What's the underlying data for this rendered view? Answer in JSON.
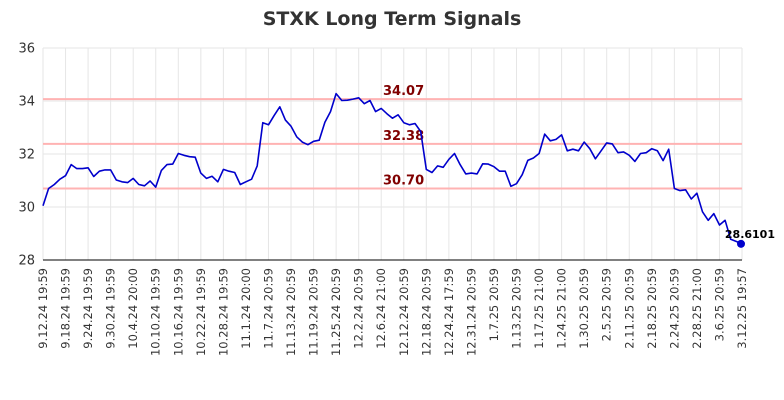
{
  "chart_data": {
    "type": "line",
    "title": "STXK Long Term Signals",
    "xlabel": "",
    "ylabel": "",
    "ylim": [
      28,
      36
    ],
    "yticks": [
      28,
      30,
      32,
      34,
      36
    ],
    "grid": true,
    "x_tick_labels": [
      "9.12.24 19:59",
      "9.18.24 19:59",
      "9.24.24 19:59",
      "9.30.24 19:59",
      "10.4.24 20:00",
      "10.10.24 19:59",
      "10.16.24 19:59",
      "10.22.24 19:59",
      "10.28.24 19:59",
      "11.1.24 20:00",
      "11.7.24 20:59",
      "11.13.24 20:59",
      "11.19.24 20:59",
      "11.25.24 20:59",
      "12.2.24 20:59",
      "12.6.24 21:00",
      "12.12.24 20:59",
      "12.18.24 20:59",
      "12.24.24 17:59",
      "12.31.24 20:59",
      "1.7.25 20:59",
      "1.13.25 20:59",
      "1.17.25 21:00",
      "1.24.25 21:00",
      "1.30.25 20:59",
      "2.5.25 20:59",
      "2.11.25 20:59",
      "2.18.25 20:59",
      "2.24.25 20:59",
      "2.28.25 21:00",
      "3.6.25 20:59",
      "3.12.25 19:57"
    ],
    "series": [
      {
        "color": "#0000cc",
        "values": [
          30.05,
          30.7,
          30.85,
          31.05,
          31.18,
          31.6,
          31.45,
          31.45,
          31.48,
          31.15,
          31.35,
          31.4,
          31.4,
          31.02,
          30.95,
          30.92,
          31.08,
          30.85,
          30.8,
          30.98,
          30.75,
          31.38,
          31.6,
          31.62,
          32.02,
          31.95,
          31.9,
          31.88,
          31.28,
          31.08,
          31.16,
          30.95,
          31.42,
          31.35,
          31.3,
          30.85,
          30.95,
          31.05,
          31.55,
          33.18,
          33.1,
          33.45,
          33.78,
          33.28,
          33.05,
          32.65,
          32.45,
          32.35,
          32.48,
          32.52,
          33.2,
          33.6,
          34.28,
          34.02,
          34.03,
          34.07,
          34.12,
          33.9,
          34.02,
          33.6,
          33.72,
          33.52,
          33.35,
          33.48,
          33.18,
          33.1,
          33.15,
          32.85,
          31.42,
          31.3,
          31.55,
          31.5,
          31.8,
          32.02,
          31.6,
          31.25,
          31.28,
          31.25,
          31.63,
          31.62,
          31.52,
          31.35,
          31.35,
          30.78,
          30.88,
          31.22,
          31.76,
          31.85,
          32.02,
          32.75,
          32.5,
          32.55,
          32.72,
          32.12,
          32.18,
          32.12,
          32.45,
          32.2,
          31.82,
          32.12,
          32.42,
          32.38,
          32.05,
          32.08,
          31.95,
          31.72,
          32.02,
          32.05,
          32.2,
          32.12,
          31.75,
          32.18,
          30.7,
          30.62,
          30.65,
          30.3,
          30.52,
          29.82,
          29.5,
          29.75,
          29.32,
          29.5,
          28.78,
          28.7,
          28.61
        ]
      }
    ],
    "levels": [
      {
        "value": 34.07,
        "label": "34.07",
        "line_color": "#ffb3b3",
        "label_color": "#800000"
      },
      {
        "value": 32.38,
        "label": "32.38",
        "line_color": "#ffb3b3",
        "label_color": "#800000"
      },
      {
        "value": 30.7,
        "label": "30.70",
        "line_color": "#ffb3b3",
        "label_color": "#800000"
      }
    ],
    "last_point": {
      "value": 28.61,
      "label": "28.6101",
      "color": "#0000cc"
    }
  }
}
